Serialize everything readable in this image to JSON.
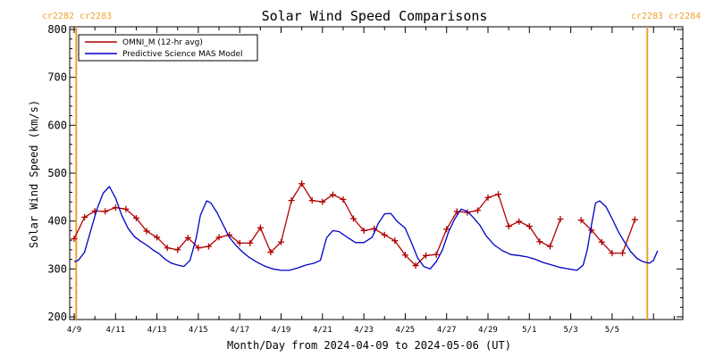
{
  "chart_data": {
    "type": "line",
    "title": "Solar Wind Speed Comparisons",
    "xlabel": "Month/Day from 2024-04-09 to 2024-05-06 (UT)",
    "ylabel": "Solar Wind Speed (km/s)",
    "ylim": [
      200,
      800
    ],
    "xlim": [
      0,
      28
    ],
    "yticks": [
      200,
      300,
      400,
      500,
      600,
      700,
      800
    ],
    "xticks": [
      {
        "x": 0,
        "label": "4/9"
      },
      {
        "x": 2,
        "label": "4/11"
      },
      {
        "x": 4,
        "label": "4/13"
      },
      {
        "x": 6,
        "label": "4/15"
      },
      {
        "x": 8,
        "label": "4/17"
      },
      {
        "x": 10,
        "label": "4/19"
      },
      {
        "x": 12,
        "label": "4/21"
      },
      {
        "x": 14,
        "label": "4/23"
      },
      {
        "x": 16,
        "label": "4/25"
      },
      {
        "x": 18,
        "label": "4/27"
      },
      {
        "x": 20,
        "label": "4/29"
      },
      {
        "x": 22,
        "label": "5/1"
      },
      {
        "x": 24,
        "label": "5/3"
      },
      {
        "x": 26,
        "label": "5/5"
      }
    ],
    "carrington_markers": [
      {
        "x": 0.1,
        "left_label": "cr2282",
        "right_label": "cr2283",
        "side": "left"
      },
      {
        "x": 27.7,
        "left_label": "cr2283",
        "right_label": "cr2284",
        "side": "right"
      }
    ],
    "legend_placement": "top-left",
    "grid": false,
    "series": [
      {
        "name": "OMNI_M (12-hr avg)",
        "color": "#b00000",
        "marker": "plus",
        "segments": [
          [
            [
              0,
              363
            ],
            [
              0.5,
              408
            ],
            [
              1,
              421
            ],
            [
              1.5,
              420
            ],
            [
              2,
              428
            ],
            [
              2.5,
              425
            ],
            [
              3,
              406
            ],
            [
              3.5,
              379
            ],
            [
              4,
              366
            ],
            [
              4.5,
              344
            ],
            [
              5,
              340
            ],
            [
              5.5,
              365
            ],
            [
              6,
              344
            ],
            [
              6.5,
              347
            ],
            [
              7,
              366
            ],
            [
              7.5,
              371
            ],
            [
              8,
              354
            ],
            [
              8.5,
              354
            ],
            [
              9,
              386
            ],
            [
              9.5,
              335
            ],
            [
              10,
              356
            ],
            [
              10.5,
              443
            ],
            [
              11,
              478
            ],
            [
              11.5,
              443
            ],
            [
              12,
              440
            ],
            [
              12.5,
              455
            ],
            [
              13,
              445
            ],
            [
              13.5,
              405
            ],
            [
              14,
              380
            ],
            [
              14.5,
              384
            ],
            [
              15,
              371
            ],
            [
              15.5,
              359
            ],
            [
              16,
              329
            ],
            [
              16.5,
              307
            ],
            [
              17,
              328
            ],
            [
              17.5,
              330
            ],
            [
              18,
              383
            ],
            [
              18.5,
              420
            ],
            [
              19,
              418
            ],
            [
              19.5,
              422
            ],
            [
              20,
              449
            ],
            [
              20.5,
              456
            ],
            [
              21,
              389
            ],
            [
              21.5,
              399
            ],
            [
              22,
              389
            ],
            [
              22.5,
              357
            ],
            [
              23,
              347
            ],
            [
              23.5,
              404
            ]
          ],
          [
            [
              24.5,
              402
            ],
            [
              25,
              381
            ],
            [
              25.5,
              356
            ],
            [
              26,
              333
            ],
            [
              26.5,
              333
            ],
            [
              27.1,
              403
            ]
          ]
        ]
      },
      {
        "name": "Predictive Science MAS Model",
        "color": "#0000c8",
        "marker": "none",
        "segments": [
          [
            [
              0,
              315
            ],
            [
              0.2,
              318
            ],
            [
              0.5,
              335
            ],
            [
              0.8,
              380
            ],
            [
              1.1,
              425
            ],
            [
              1.4,
              458
            ],
            [
              1.7,
              472
            ],
            [
              2,
              448
            ],
            [
              2.3,
              412
            ],
            [
              2.6,
              385
            ],
            [
              2.9,
              368
            ],
            [
              3.2,
              358
            ],
            [
              3.5,
              350
            ],
            [
              3.8,
              340
            ],
            [
              4.1,
              332
            ],
            [
              4.4,
              320
            ],
            [
              4.7,
              312
            ],
            [
              5,
              308
            ],
            [
              5.3,
              305
            ],
            [
              5.6,
              318
            ],
            [
              5.9,
              365
            ],
            [
              6.1,
              412
            ],
            [
              6.4,
              442
            ],
            [
              6.6,
              438
            ],
            [
              6.9,
              418
            ],
            [
              7.2,
              392
            ],
            [
              7.5,
              366
            ],
            [
              7.8,
              350
            ],
            [
              8.1,
              337
            ],
            [
              8.4,
              326
            ],
            [
              8.8,
              315
            ],
            [
              9.2,
              306
            ],
            [
              9.6,
              300
            ],
            [
              10,
              297
            ],
            [
              10.4,
              297
            ],
            [
              10.8,
              302
            ],
            [
              11.2,
              308
            ],
            [
              11.6,
              312
            ],
            [
              11.9,
              318
            ],
            [
              12.2,
              365
            ],
            [
              12.5,
              380
            ],
            [
              12.8,
              378
            ],
            [
              13.2,
              366
            ],
            [
              13.6,
              355
            ],
            [
              14,
              355
            ],
            [
              14.4,
              366
            ],
            [
              14.7,
              395
            ],
            [
              15,
              415
            ],
            [
              15.3,
              416
            ],
            [
              15.6,
              400
            ],
            [
              16,
              385
            ],
            [
              16.3,
              355
            ],
            [
              16.6,
              323
            ],
            [
              16.9,
              305
            ],
            [
              17.2,
              300
            ],
            [
              17.5,
              315
            ],
            [
              17.8,
              340
            ],
            [
              18.1,
              378
            ],
            [
              18.4,
              405
            ],
            [
              18.7,
              425
            ],
            [
              19,
              420
            ],
            [
              19.3,
              407
            ],
            [
              19.6,
              392
            ],
            [
              19.9,
              370
            ],
            [
              20.3,
              350
            ],
            [
              20.7,
              338
            ],
            [
              21.1,
              330
            ],
            [
              21.5,
              328
            ],
            [
              21.9,
              325
            ],
            [
              22.3,
              320
            ],
            [
              22.7,
              313
            ],
            [
              23.1,
              308
            ],
            [
              23.5,
              303
            ],
            [
              23.9,
              300
            ],
            [
              24.3,
              297
            ],
            [
              24.6,
              308
            ],
            [
              24.8,
              340
            ],
            [
              25,
              392
            ],
            [
              25.2,
              438
            ],
            [
              25.4,
              442
            ],
            [
              25.7,
              430
            ],
            [
              26,
              405
            ],
            [
              26.3,
              378
            ],
            [
              26.6,
              356
            ],
            [
              26.9,
              336
            ],
            [
              27.2,
              322
            ],
            [
              27.5,
              315
            ],
            [
              27.8,
              312
            ],
            [
              28,
              318
            ],
            [
              28.2,
              338
            ]
          ]
        ]
      }
    ]
  }
}
